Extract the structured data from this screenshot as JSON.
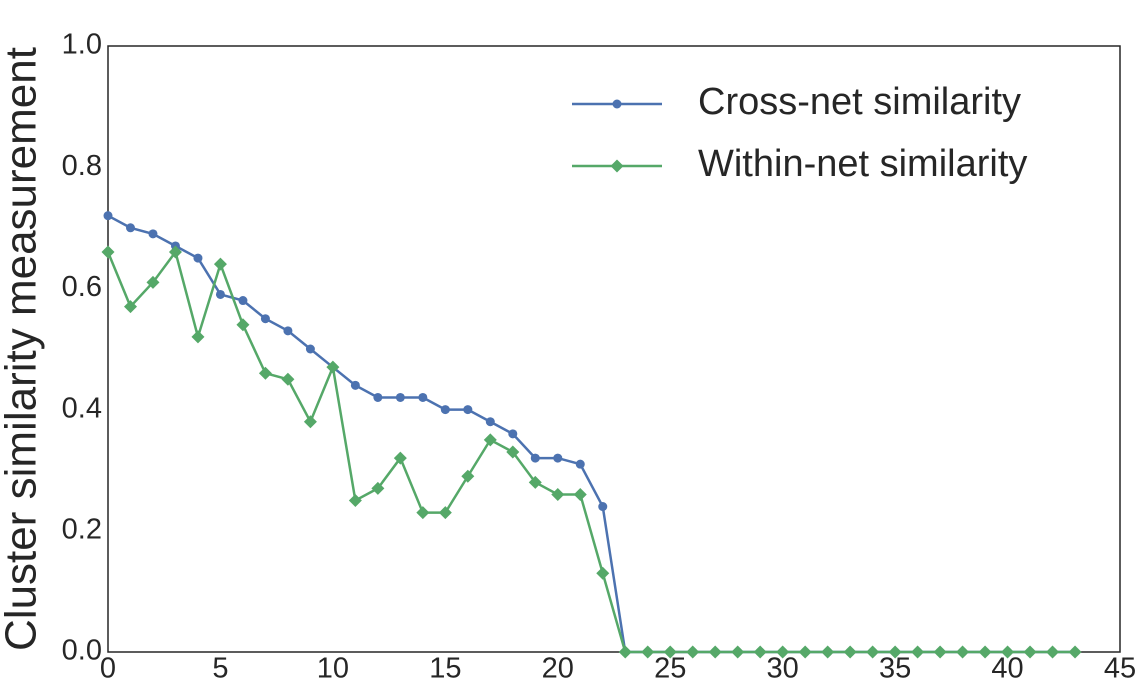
{
  "chart_data": {
    "type": "line",
    "y_label": "Cluster similarity measurement",
    "x": [
      0,
      1,
      2,
      3,
      4,
      5,
      6,
      7,
      8,
      9,
      10,
      11,
      12,
      13,
      14,
      15,
      16,
      17,
      18,
      19,
      20,
      21,
      22,
      23,
      24,
      25,
      26,
      27,
      28,
      29,
      30,
      31,
      32,
      33,
      34,
      35,
      36,
      37,
      38,
      39,
      40,
      41,
      42,
      43
    ],
    "series": [
      {
        "name": "Cross-net similarity",
        "color": "#4c72b0",
        "marker": "circle",
        "values": [
          0.72,
          0.7,
          0.69,
          0.67,
          0.65,
          0.59,
          0.58,
          0.55,
          0.53,
          0.5,
          0.47,
          0.44,
          0.42,
          0.42,
          0.42,
          0.4,
          0.4,
          0.38,
          0.36,
          0.32,
          0.32,
          0.31,
          0.24,
          0,
          0,
          0,
          0,
          0,
          0,
          0,
          0,
          0,
          0,
          0,
          0,
          0,
          0,
          0,
          0,
          0,
          0,
          0,
          0,
          0
        ]
      },
      {
        "name": "Within-net similarity",
        "color": "#55a868",
        "marker": "diamond",
        "values": [
          0.66,
          0.57,
          0.61,
          0.66,
          0.52,
          0.64,
          0.54,
          0.46,
          0.45,
          0.38,
          0.47,
          0.25,
          0.27,
          0.32,
          0.23,
          0.23,
          0.29,
          0.35,
          0.33,
          0.28,
          0.26,
          0.26,
          0.13,
          0,
          0,
          0,
          0,
          0,
          0,
          0,
          0,
          0,
          0,
          0,
          0,
          0,
          0,
          0,
          0,
          0,
          0,
          0,
          0,
          0
        ]
      }
    ],
    "xlim": [
      0,
      45
    ],
    "xticks": [
      0,
      5,
      10,
      15,
      20,
      25,
      30,
      35,
      40,
      45
    ],
    "ylim": [
      0,
      1
    ],
    "yticks": [
      {
        "value": 0,
        "label": "0.0"
      },
      0.2,
      0.4,
      0.6,
      0.8,
      {
        "value": 1,
        "label": "1.0"
      }
    ],
    "grid": false,
    "legend": "upper right"
  }
}
